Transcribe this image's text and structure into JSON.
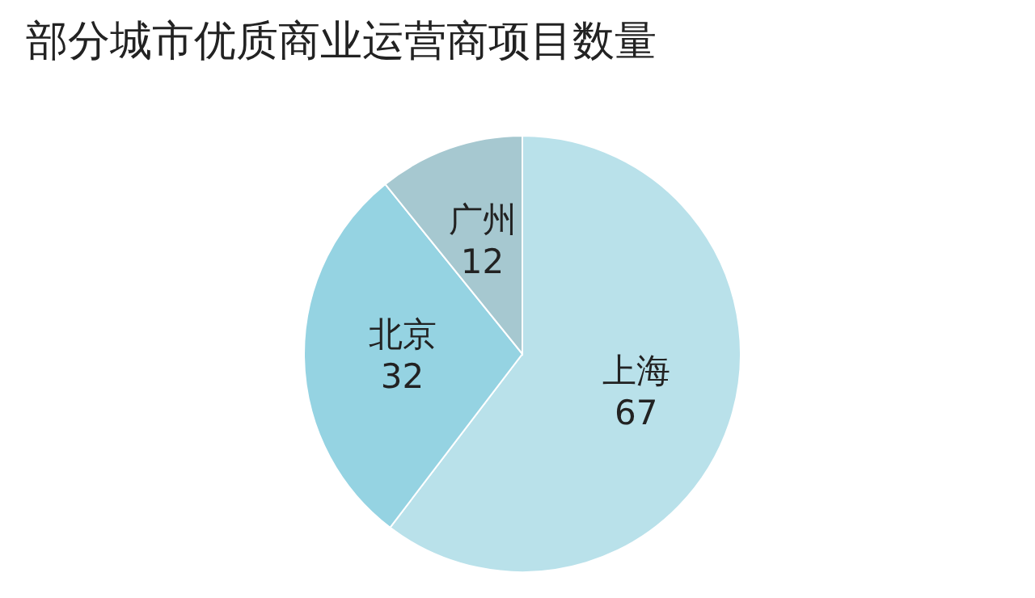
{
  "chart_data": {
    "type": "pie",
    "title": "部分城市优质商业运营商项目数量",
    "categories": [
      "上海",
      "北京",
      "广州"
    ],
    "values": [
      67,
      32,
      12
    ],
    "colors": [
      "#b9e1ea",
      "#95d3e2",
      "#a6c8d0"
    ],
    "data_labels": true,
    "legend": false
  }
}
